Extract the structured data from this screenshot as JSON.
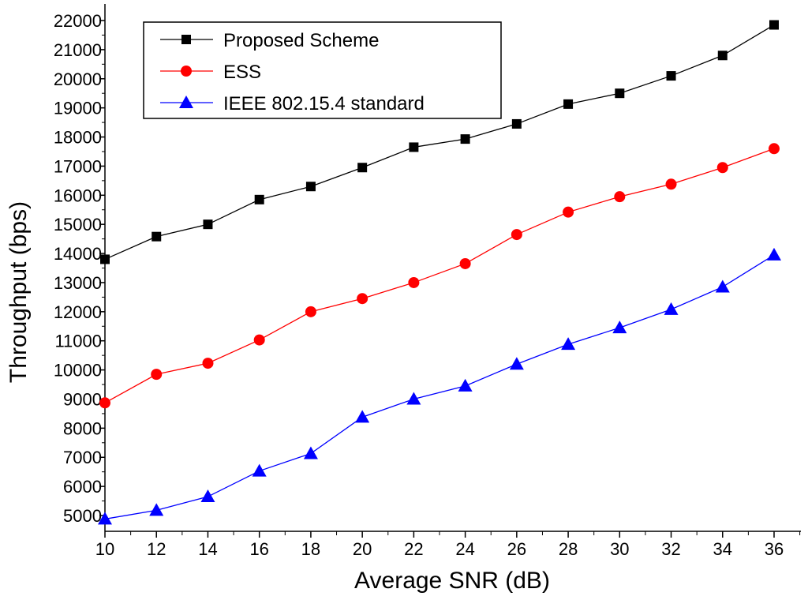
{
  "chart_data": {
    "type": "line",
    "title": "",
    "xlabel": "Average SNR (dB)",
    "ylabel": "Throughput (bps)",
    "xlim": [
      10,
      37
    ],
    "ylim": [
      4500,
      22000
    ],
    "x_ticks": [
      10,
      12,
      14,
      16,
      18,
      20,
      22,
      24,
      26,
      28,
      30,
      32,
      34,
      36
    ],
    "y_ticks": [
      5000,
      6000,
      7000,
      8000,
      9000,
      10000,
      11000,
      12000,
      13000,
      14000,
      15000,
      16000,
      17000,
      18000,
      19000,
      20000,
      21000,
      22000
    ],
    "grid": false,
    "legend_position": "top-left",
    "x": [
      10,
      12,
      14,
      16,
      18,
      20,
      22,
      24,
      26,
      28,
      30,
      32,
      34,
      36
    ],
    "series": [
      {
        "name": "Proposed Scheme",
        "color": "#000000",
        "marker": "square",
        "values": [
          13800,
          14580,
          15000,
          15850,
          16300,
          16950,
          17650,
          17930,
          18450,
          19130,
          19500,
          20100,
          20800,
          21850
        ]
      },
      {
        "name": "ESS",
        "color": "#ff0000",
        "marker": "circle",
        "values": [
          8870,
          9850,
          10230,
          11030,
          12000,
          12450,
          13000,
          13650,
          14650,
          15420,
          15950,
          16380,
          16950,
          17600
        ]
      },
      {
        "name": "IEEE 802.15.4 standard",
        "color": "#0000ff",
        "marker": "triangle",
        "values": [
          4880,
          5180,
          5650,
          6530,
          7130,
          8380,
          9000,
          9450,
          10200,
          10880,
          11450,
          12080,
          12850,
          13950
        ]
      }
    ]
  }
}
